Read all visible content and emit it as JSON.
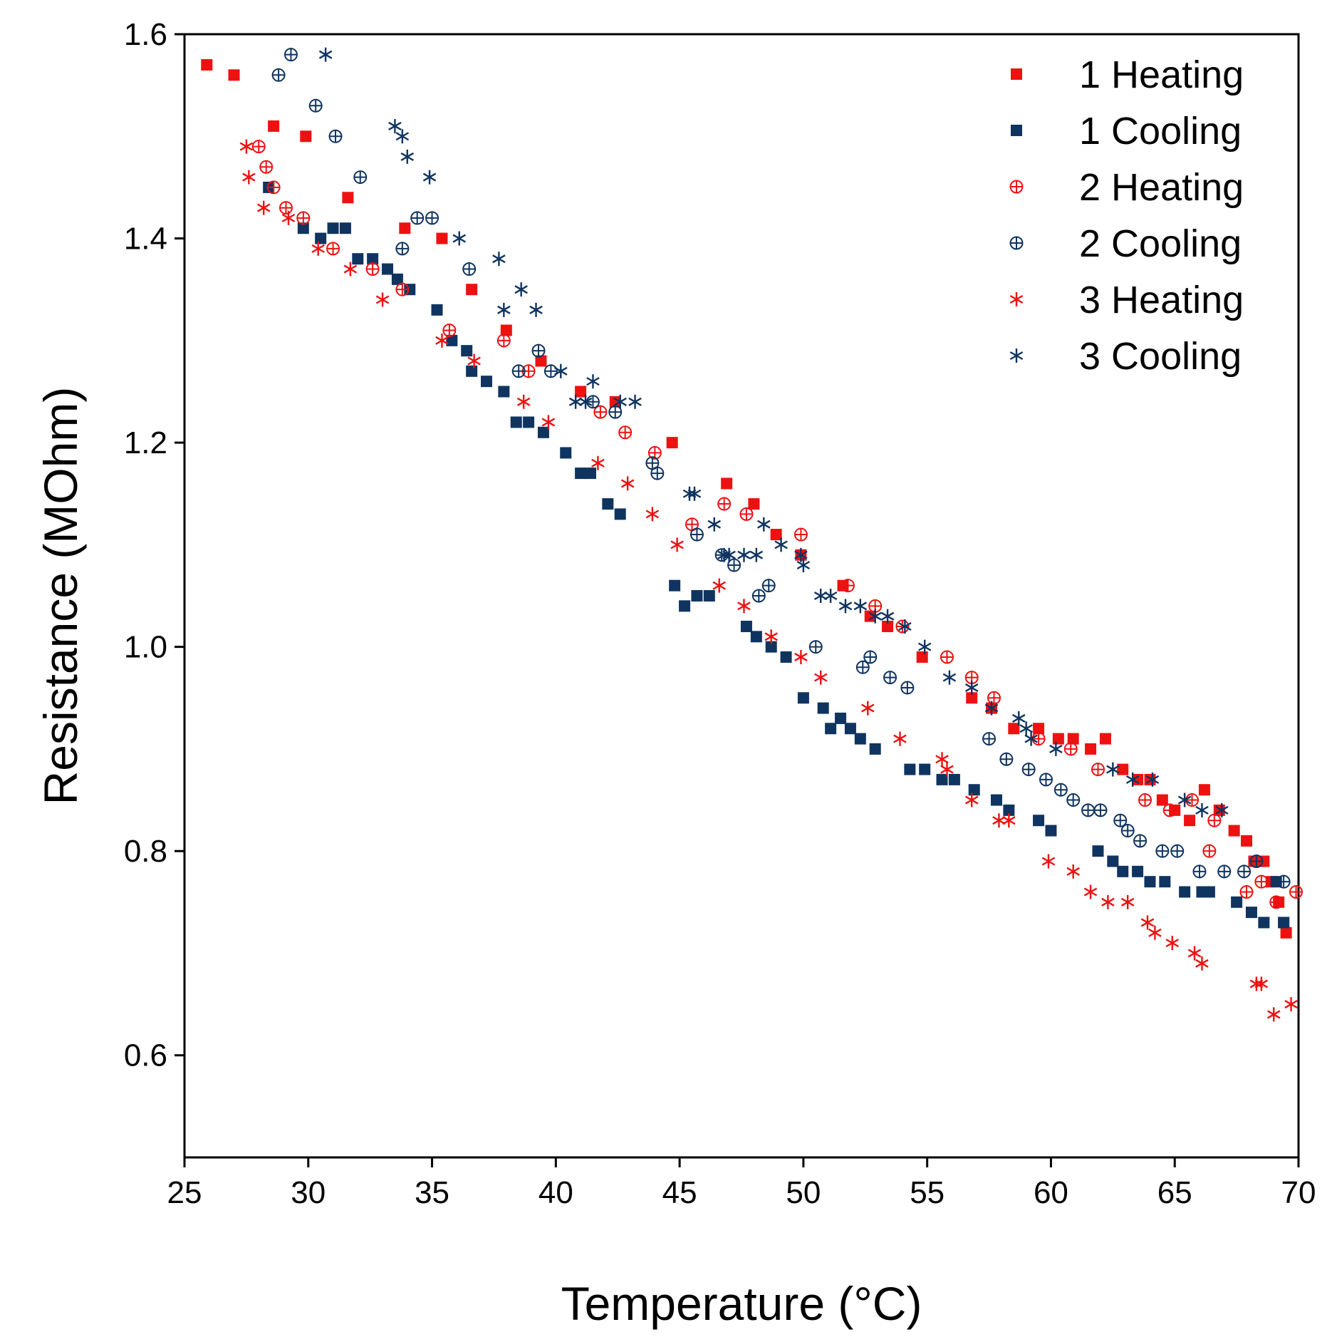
{
  "chart_data": {
    "type": "scatter",
    "title": "",
    "xlabel": "Temperature (°C)",
    "ylabel": "Resistance (MOhm)",
    "xlim": [
      25,
      70
    ],
    "ylim": [
      0.5,
      1.6
    ],
    "xticks": [
      25,
      30,
      35,
      40,
      45,
      50,
      55,
      60,
      65,
      70
    ],
    "xtick_labels": [
      "25",
      "30",
      "35",
      "40",
      "45",
      "50",
      "55",
      "60",
      "65",
      "70"
    ],
    "yticks": [
      0.6,
      0.8,
      1.0,
      1.2,
      1.4,
      1.6
    ],
    "ytick_labels": [
      "0.6",
      "0.8",
      "1.0",
      "1.2",
      "1.4",
      "1.6"
    ],
    "grid": false,
    "legend_position": "top-right",
    "colors": {
      "red": "#ee1111",
      "navy": "#0f3460"
    },
    "series": [
      {
        "name": "1 Heating",
        "marker": "square",
        "color": "#ee1111",
        "x": [
          25.9,
          27.0,
          28.6,
          29.9,
          31.6,
          33.9,
          35.4,
          36.6,
          38.0,
          39.4,
          41.0,
          42.4,
          44.7,
          46.9,
          48.0,
          48.9,
          49.9,
          51.6,
          52.7,
          53.4,
          54.8,
          56.8,
          57.6,
          58.5,
          59.5,
          60.3,
          60.9,
          61.6,
          62.2,
          62.9,
          63.5,
          64.0,
          64.5,
          65.0,
          65.6,
          66.2,
          66.8,
          67.4,
          67.9,
          68.2,
          68.6,
          68.9,
          69.2,
          69.4,
          69.5
        ],
        "y": [
          1.57,
          1.56,
          1.51,
          1.5,
          1.44,
          1.41,
          1.4,
          1.35,
          1.31,
          1.28,
          1.25,
          1.24,
          1.2,
          1.16,
          1.14,
          1.11,
          1.09,
          1.06,
          1.03,
          1.02,
          0.99,
          0.95,
          0.94,
          0.92,
          0.92,
          0.91,
          0.91,
          0.9,
          0.91,
          0.88,
          0.87,
          0.87,
          0.85,
          0.84,
          0.83,
          0.86,
          0.84,
          0.82,
          0.81,
          0.79,
          0.79,
          0.77,
          0.75,
          0.73,
          0.72
        ]
      },
      {
        "name": "1 Cooling",
        "marker": "square",
        "color": "#0f3460",
        "x": [
          28.4,
          29.8,
          30.5,
          31.0,
          31.5,
          32.0,
          32.6,
          33.2,
          33.6,
          34.1,
          35.2,
          35.8,
          36.4,
          36.6,
          37.2,
          37.9,
          38.4,
          38.9,
          39.5,
          40.4,
          41.0,
          41.4,
          42.1,
          42.6,
          44.8,
          45.2,
          45.7,
          46.2,
          47.7,
          48.1,
          48.7,
          49.3,
          50.0,
          50.8,
          51.1,
          51.5,
          51.9,
          52.3,
          52.9,
          54.3,
          54.9,
          55.6,
          56.1,
          56.9,
          57.8,
          58.3,
          59.5,
          60.0,
          61.9,
          62.5,
          62.9,
          63.5,
          64.0,
          64.6,
          65.4,
          66.1,
          66.4,
          67.5,
          68.1,
          68.6,
          69.1,
          69.4
        ],
        "y": [
          1.45,
          1.41,
          1.4,
          1.41,
          1.41,
          1.38,
          1.38,
          1.37,
          1.36,
          1.35,
          1.33,
          1.3,
          1.29,
          1.27,
          1.26,
          1.25,
          1.22,
          1.22,
          1.21,
          1.19,
          1.17,
          1.17,
          1.14,
          1.13,
          1.06,
          1.04,
          1.05,
          1.05,
          1.02,
          1.01,
          1.0,
          0.99,
          0.95,
          0.94,
          0.92,
          0.93,
          0.92,
          0.91,
          0.9,
          0.88,
          0.88,
          0.87,
          0.87,
          0.86,
          0.85,
          0.84,
          0.83,
          0.82,
          0.8,
          0.79,
          0.78,
          0.78,
          0.77,
          0.77,
          0.76,
          0.76,
          0.76,
          0.75,
          0.74,
          0.73,
          0.77,
          0.73
        ]
      },
      {
        "name": "2 Heating",
        "marker": "circle-plus",
        "color": "#ee1111",
        "x": [
          28.0,
          28.3,
          28.6,
          29.1,
          29.8,
          31.0,
          32.6,
          33.8,
          35.7,
          37.9,
          38.9,
          41.8,
          42.8,
          44.0,
          45.5,
          46.8,
          47.7,
          49.9,
          51.8,
          52.9,
          54.0,
          55.8,
          56.8,
          57.7,
          59.5,
          60.8,
          61.9,
          63.8,
          64.8,
          65.7,
          66.4,
          66.6,
          67.9,
          68.5,
          69.1,
          69.9
        ],
        "y": [
          1.49,
          1.47,
          1.45,
          1.43,
          1.42,
          1.39,
          1.37,
          1.35,
          1.31,
          1.3,
          1.27,
          1.23,
          1.21,
          1.19,
          1.12,
          1.14,
          1.13,
          1.11,
          1.06,
          1.04,
          1.02,
          0.99,
          0.97,
          0.95,
          0.91,
          0.9,
          0.88,
          0.85,
          0.84,
          0.85,
          0.8,
          0.83,
          0.76,
          0.77,
          0.75,
          0.76
        ]
      },
      {
        "name": "2 Cooling",
        "marker": "circle-plus",
        "color": "#0f3460",
        "x": [
          28.8,
          29.3,
          30.3,
          31.1,
          32.1,
          33.8,
          34.4,
          35.0,
          36.5,
          38.5,
          39.3,
          39.8,
          41.5,
          42.4,
          43.9,
          44.1,
          45.7,
          46.7,
          47.2,
          48.2,
          48.6,
          50.5,
          52.4,
          52.7,
          53.5,
          54.2,
          57.5,
          58.2,
          59.1,
          59.8,
          60.4,
          60.9,
          61.5,
          62.0,
          62.8,
          63.1,
          63.6,
          64.5,
          65.1,
          66.0,
          67.0,
          67.8,
          68.3,
          69.4
        ],
        "y": [
          1.56,
          1.58,
          1.53,
          1.5,
          1.46,
          1.39,
          1.42,
          1.42,
          1.37,
          1.27,
          1.29,
          1.27,
          1.24,
          1.23,
          1.18,
          1.17,
          1.11,
          1.09,
          1.08,
          1.05,
          1.06,
          1.0,
          0.98,
          0.99,
          0.97,
          0.96,
          0.91,
          0.89,
          0.88,
          0.87,
          0.86,
          0.85,
          0.84,
          0.84,
          0.83,
          0.82,
          0.81,
          0.8,
          0.8,
          0.78,
          0.78,
          0.78,
          0.79,
          0.77
        ]
      },
      {
        "name": "3 Heating",
        "marker": "asterisk",
        "color": "#ee1111",
        "x": [
          27.5,
          27.6,
          28.2,
          29.2,
          30.4,
          31.7,
          33.0,
          35.4,
          36.7,
          38.7,
          39.7,
          41.7,
          42.9,
          43.9,
          44.9,
          46.6,
          47.6,
          48.7,
          49.9,
          50.7,
          52.6,
          53.9,
          55.6,
          55.8,
          56.8,
          57.9,
          58.3,
          59.9,
          60.9,
          61.6,
          62.3,
          63.1,
          63.9,
          64.2,
          64.9,
          65.8,
          66.1,
          68.3,
          68.5,
          69.0,
          69.7
        ],
        "y": [
          1.49,
          1.46,
          1.43,
          1.42,
          1.39,
          1.37,
          1.34,
          1.3,
          1.28,
          1.24,
          1.22,
          1.18,
          1.16,
          1.13,
          1.1,
          1.06,
          1.04,
          1.01,
          0.99,
          0.97,
          0.94,
          0.91,
          0.89,
          0.88,
          0.85,
          0.83,
          0.83,
          0.79,
          0.78,
          0.76,
          0.75,
          0.75,
          0.73,
          0.72,
          0.71,
          0.7,
          0.69,
          0.67,
          0.67,
          0.64,
          0.65
        ]
      },
      {
        "name": "3 Cooling",
        "marker": "asterisk",
        "color": "#0f3460",
        "x": [
          30.7,
          33.5,
          33.8,
          34.0,
          34.9,
          36.1,
          37.7,
          37.9,
          38.6,
          39.2,
          40.2,
          40.8,
          41.2,
          41.5,
          42.6,
          43.2,
          45.4,
          45.6,
          46.4,
          46.8,
          47.0,
          47.6,
          48.1,
          48.4,
          49.1,
          49.9,
          50.0,
          50.7,
          51.1,
          51.7,
          52.3,
          52.9,
          53.4,
          54.1,
          54.9,
          55.9,
          56.8,
          57.6,
          58.7,
          59.0,
          59.2,
          60.2,
          62.5,
          63.3,
          64.1,
          65.4,
          66.1,
          66.9
        ],
        "y": [
          1.58,
          1.51,
          1.5,
          1.48,
          1.46,
          1.4,
          1.38,
          1.33,
          1.35,
          1.33,
          1.27,
          1.24,
          1.24,
          1.26,
          1.24,
          1.24,
          1.15,
          1.15,
          1.12,
          1.09,
          1.09,
          1.09,
          1.09,
          1.12,
          1.1,
          1.09,
          1.08,
          1.05,
          1.05,
          1.04,
          1.04,
          1.03,
          1.03,
          1.02,
          1.0,
          0.97,
          0.96,
          0.94,
          0.93,
          0.92,
          0.91,
          0.9,
          0.88,
          0.87,
          0.87,
          0.85,
          0.84,
          0.84
        ]
      }
    ]
  }
}
